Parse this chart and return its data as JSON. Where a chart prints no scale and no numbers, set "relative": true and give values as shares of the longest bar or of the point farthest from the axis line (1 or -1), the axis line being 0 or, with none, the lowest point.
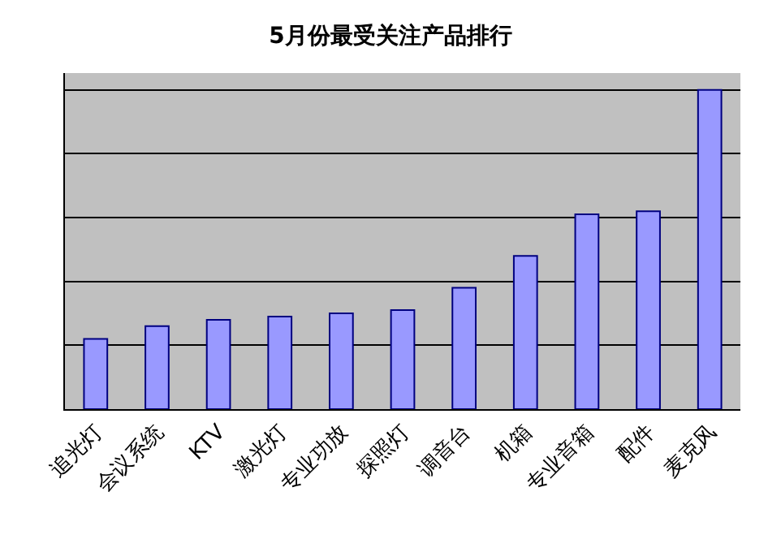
{
  "chart_data": {
    "type": "bar",
    "title": "5月份最受关注产品排行",
    "relative": true,
    "grid": "y",
    "legend": false,
    "categories": [
      "追光灯",
      "会议系统",
      "KTV",
      "激光灯",
      "专业功放",
      "探照灯",
      "调音台",
      "机箱",
      "专业音箱",
      "配件",
      "麦克风"
    ],
    "series": [
      {
        "color": "#9999ff",
        "values": [
          0.22,
          0.26,
          0.28,
          0.29,
          0.3,
          0.31,
          0.38,
          0.48,
          0.61,
          0.62,
          1.0
        ]
      }
    ]
  }
}
